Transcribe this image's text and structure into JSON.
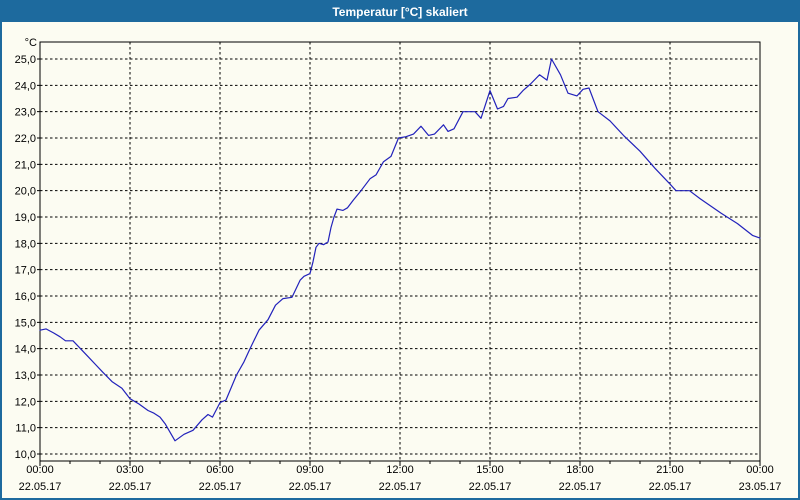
{
  "window": {
    "title": "Temperatur [°C] skaliert"
  },
  "colors": {
    "titlebar": "#1d6a9e",
    "window_border": "#1d6a9e",
    "background": "#fcfcf2",
    "line": "#2222bb",
    "grid": "#000000",
    "text": "#000000"
  },
  "chart_data": {
    "type": "line",
    "title": "Temperatur [°C] skaliert",
    "ylabel": "°C",
    "xlabel": "",
    "x_unit": "hours-since-00:00-22.05.17",
    "xlim": [
      0,
      24
    ],
    "ylim": [
      9.75,
      25.65
    ],
    "grid": true,
    "grid_style": "dashed",
    "legend": "none",
    "y_ticks": {
      "values": [
        25,
        24,
        23,
        22,
        21,
        20,
        19,
        18,
        17,
        16,
        15,
        14,
        13,
        12,
        11,
        10
      ],
      "labels": [
        "25,0",
        "24,0",
        "23,0",
        "22,0",
        "21,0",
        "20,0",
        "19,0",
        "18,0",
        "17,0",
        "16,0",
        "15,0",
        "14,0",
        "13,0",
        "12,0",
        "11,0",
        "10,0"
      ]
    },
    "x_ticks": [
      {
        "hour": 0,
        "time": "00:00",
        "date": "22.05.17"
      },
      {
        "hour": 3,
        "time": "03:00",
        "date": "22.05.17"
      },
      {
        "hour": 6,
        "time": "06:00",
        "date": "22.05.17"
      },
      {
        "hour": 9,
        "time": "09:00",
        "date": "22.05.17"
      },
      {
        "hour": 12,
        "time": "12:00",
        "date": "22.05.17"
      },
      {
        "hour": 15,
        "time": "15:00",
        "date": "22.05.17"
      },
      {
        "hour": 18,
        "time": "18:00",
        "date": "22.05.17"
      },
      {
        "hour": 21,
        "time": "21:00",
        "date": "22.05.17"
      },
      {
        "hour": 24,
        "time": "00:00",
        "date": "23.05.17"
      }
    ],
    "minor_x_tick_every_hours": 1,
    "series": [
      {
        "name": "Temperatur",
        "color": "#2222bb",
        "points": [
          [
            0.0,
            14.7
          ],
          [
            0.2,
            14.75
          ],
          [
            0.45,
            14.6
          ],
          [
            0.67,
            14.45
          ],
          [
            0.85,
            14.3
          ],
          [
            1.1,
            14.3
          ],
          [
            1.35,
            14.0
          ],
          [
            1.6,
            13.7
          ],
          [
            1.85,
            13.4
          ],
          [
            2.1,
            13.1
          ],
          [
            2.4,
            12.75
          ],
          [
            2.73,
            12.5
          ],
          [
            3.0,
            12.1
          ],
          [
            3.3,
            11.9
          ],
          [
            3.6,
            11.65
          ],
          [
            3.8,
            11.55
          ],
          [
            4.0,
            11.4
          ],
          [
            4.17,
            11.15
          ],
          [
            4.5,
            10.5
          ],
          [
            4.8,
            10.75
          ],
          [
            5.1,
            10.9
          ],
          [
            5.4,
            11.3
          ],
          [
            5.6,
            11.5
          ],
          [
            5.75,
            11.4
          ],
          [
            6.0,
            11.95
          ],
          [
            6.2,
            12.05
          ],
          [
            6.55,
            13.0
          ],
          [
            6.8,
            13.5
          ],
          [
            7.0,
            14.0
          ],
          [
            7.3,
            14.7
          ],
          [
            7.6,
            15.1
          ],
          [
            7.85,
            15.65
          ],
          [
            8.1,
            15.9
          ],
          [
            8.4,
            15.95
          ],
          [
            8.67,
            16.6
          ],
          [
            8.8,
            16.75
          ],
          [
            9.0,
            16.85
          ],
          [
            9.1,
            17.3
          ],
          [
            9.2,
            17.85
          ],
          [
            9.3,
            18.0
          ],
          [
            9.45,
            17.95
          ],
          [
            9.6,
            18.05
          ],
          [
            9.7,
            18.6
          ],
          [
            9.8,
            19.0
          ],
          [
            9.9,
            19.3
          ],
          [
            10.1,
            19.25
          ],
          [
            10.25,
            19.35
          ],
          [
            10.45,
            19.65
          ],
          [
            10.7,
            20.0
          ],
          [
            11.0,
            20.45
          ],
          [
            11.2,
            20.6
          ],
          [
            11.45,
            21.1
          ],
          [
            11.7,
            21.3
          ],
          [
            11.95,
            22.0
          ],
          [
            12.2,
            22.05
          ],
          [
            12.45,
            22.15
          ],
          [
            12.7,
            22.45
          ],
          [
            12.95,
            22.1
          ],
          [
            13.15,
            22.15
          ],
          [
            13.45,
            22.5
          ],
          [
            13.6,
            22.25
          ],
          [
            13.8,
            22.35
          ],
          [
            14.1,
            23.0
          ],
          [
            14.5,
            23.0
          ],
          [
            14.7,
            22.75
          ],
          [
            15.0,
            23.8
          ],
          [
            15.25,
            23.1
          ],
          [
            15.45,
            23.2
          ],
          [
            15.6,
            23.5
          ],
          [
            15.9,
            23.55
          ],
          [
            16.1,
            23.8
          ],
          [
            16.35,
            24.05
          ],
          [
            16.65,
            24.4
          ],
          [
            16.9,
            24.2
          ],
          [
            17.05,
            25.0
          ],
          [
            17.35,
            24.4
          ],
          [
            17.6,
            23.7
          ],
          [
            17.9,
            23.6
          ],
          [
            18.1,
            23.85
          ],
          [
            18.3,
            23.9
          ],
          [
            18.6,
            23.0
          ],
          [
            19.0,
            22.65
          ],
          [
            19.45,
            22.1
          ],
          [
            20.0,
            21.5
          ],
          [
            20.5,
            20.85
          ],
          [
            21.0,
            20.25
          ],
          [
            21.2,
            20.0
          ],
          [
            21.65,
            20.0
          ],
          [
            22.0,
            19.7
          ],
          [
            22.7,
            19.15
          ],
          [
            23.25,
            18.75
          ],
          [
            23.75,
            18.3
          ],
          [
            24.0,
            18.2
          ]
        ]
      }
    ]
  }
}
